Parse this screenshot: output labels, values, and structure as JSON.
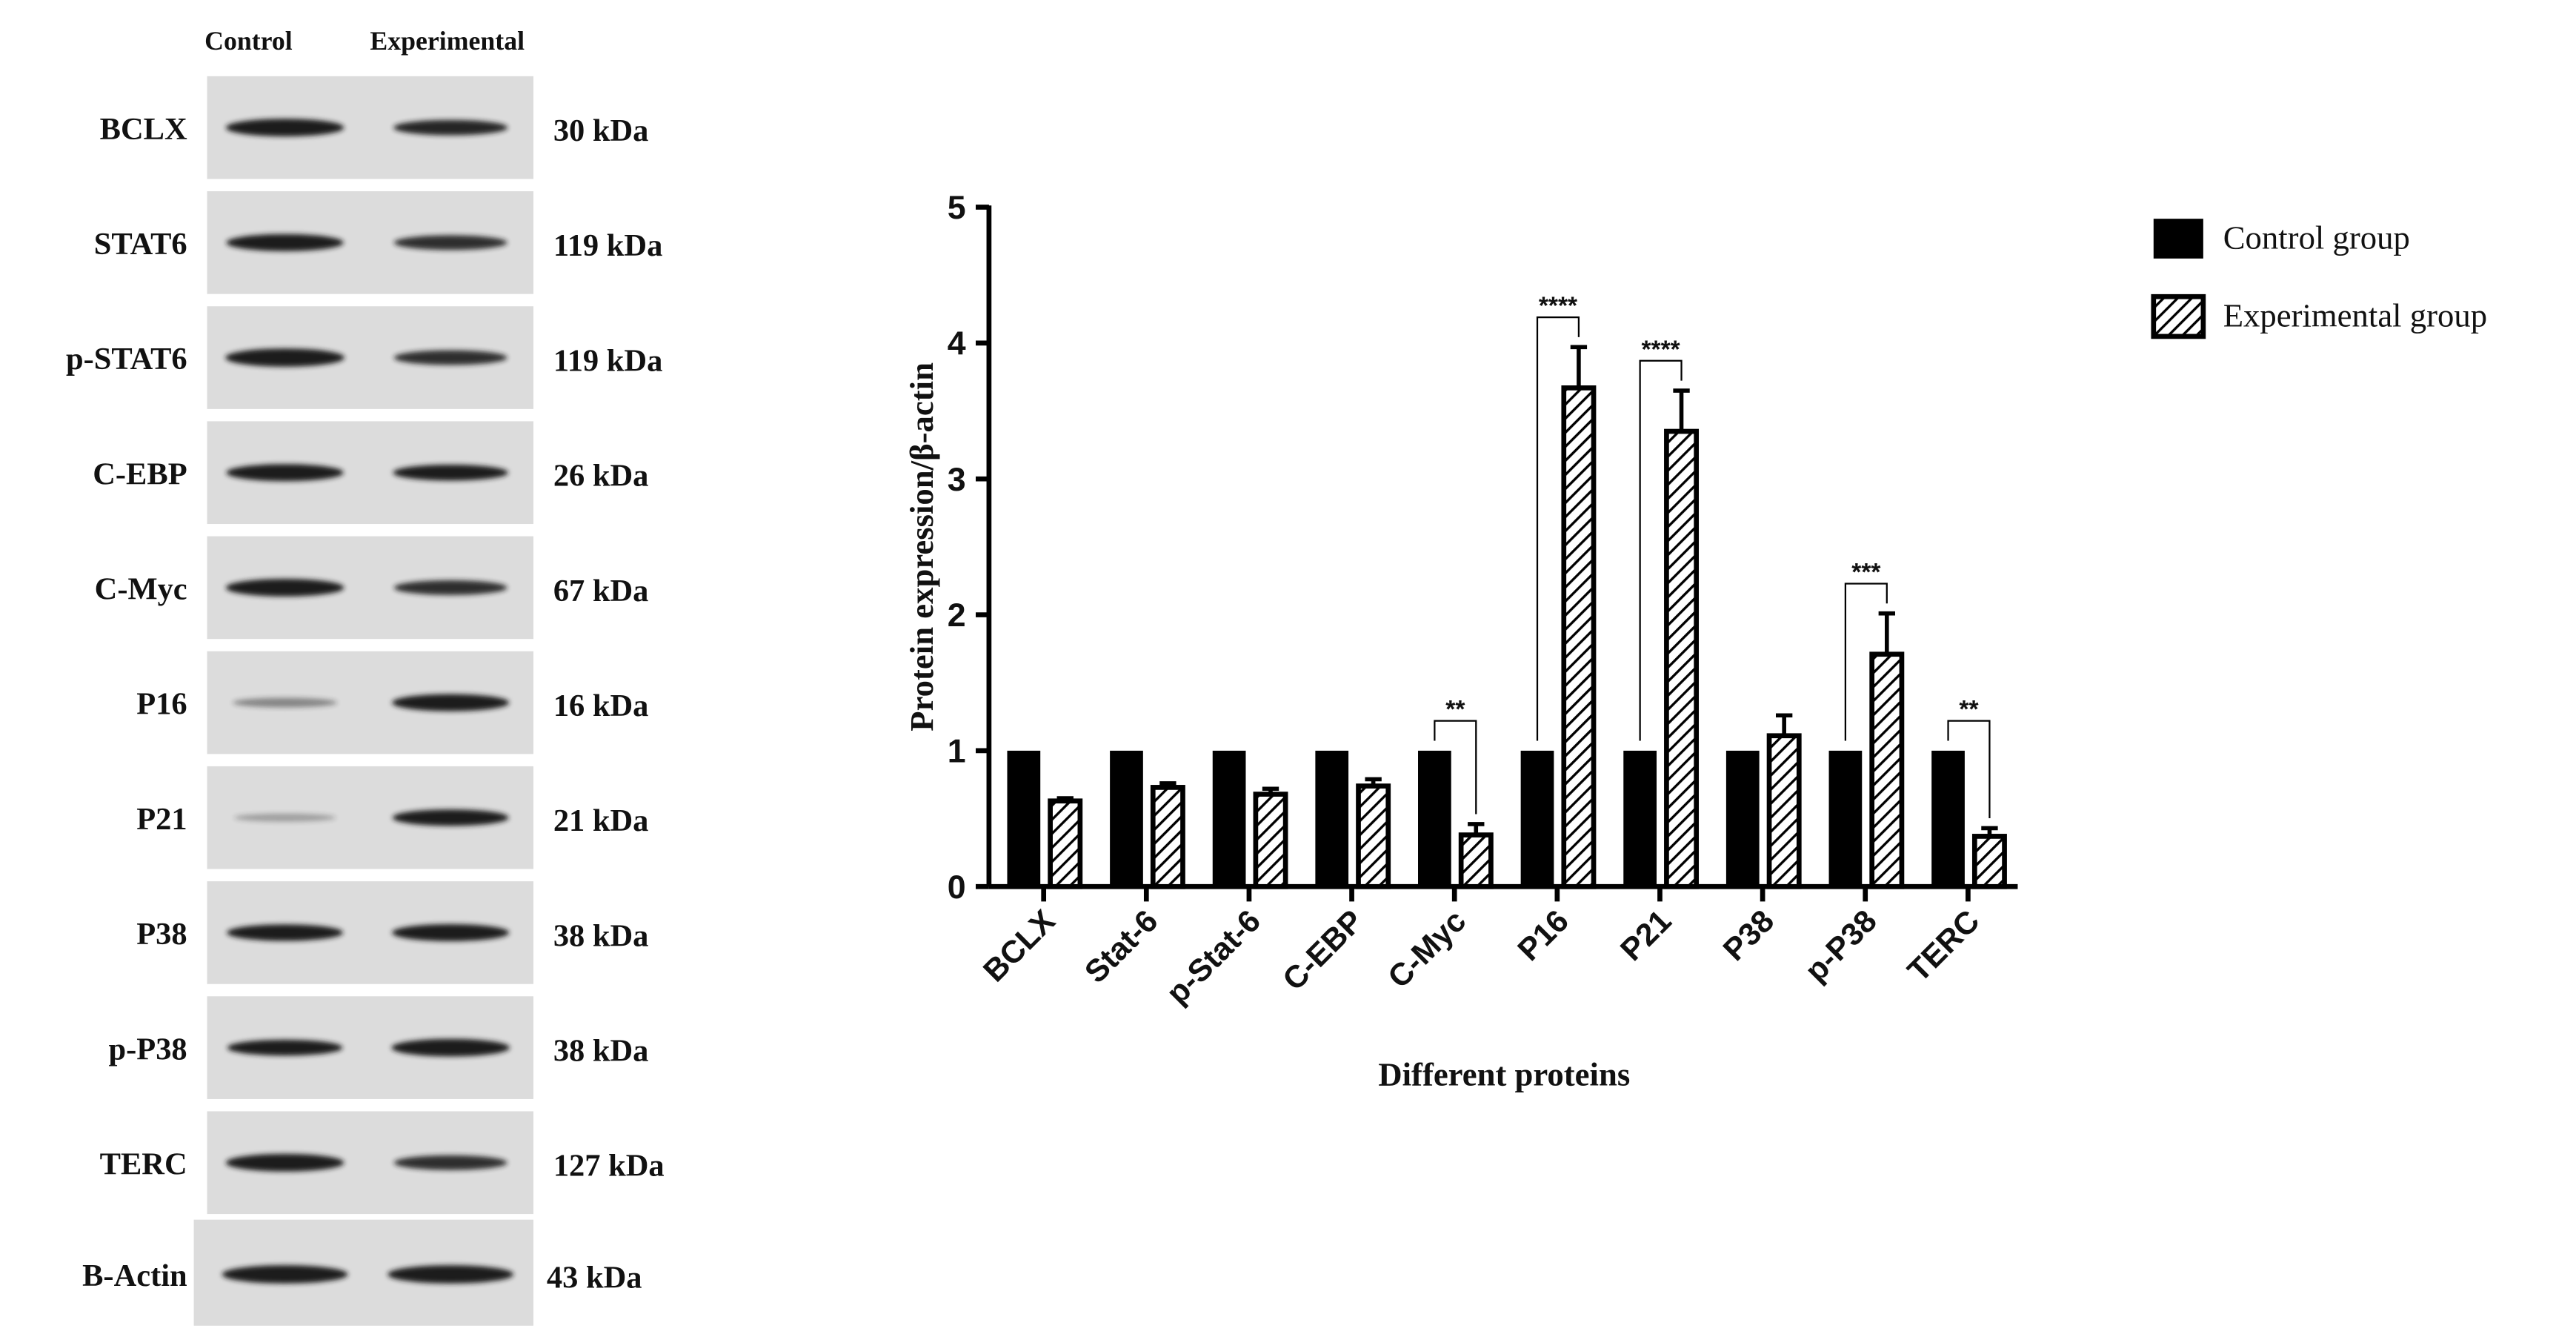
{
  "blot": {
    "column_headers": [
      "Control",
      "Experimental"
    ],
    "rows": [
      {
        "label": "BCLX",
        "kda": "30 kDa",
        "control": 0.95,
        "experimental": 0.75
      },
      {
        "label": "STAT6",
        "kda": "119 kDa",
        "control": 0.9,
        "experimental": 0.7
      },
      {
        "label": "p-STAT6",
        "kda": "119 kDa",
        "control": 1.0,
        "experimental": 0.7
      },
      {
        "label": "C-EBP",
        "kda": "26 kDa",
        "control": 0.9,
        "experimental": 0.8
      },
      {
        "label": "C-Myc",
        "kda": "67 kDa",
        "control": 0.95,
        "experimental": 0.7
      },
      {
        "label": "P16",
        "kda": "16 kDa",
        "control": 0.25,
        "experimental": 0.9
      },
      {
        "label": "P21",
        "kda": "21 kDa",
        "control": 0.12,
        "experimental": 0.85
      },
      {
        "label": "P38",
        "kda": "38 kDa",
        "control": 0.85,
        "experimental": 0.9
      },
      {
        "label": "p-P38",
        "kda": "38 kDa",
        "control": 0.8,
        "experimental": 0.95
      },
      {
        "label": "TERC",
        "kda": "127 kDa",
        "control": 0.95,
        "experimental": 0.7
      },
      {
        "label": "B-Actin",
        "kda": "43 kDa",
        "control": 1.0,
        "experimental": 1.0
      }
    ]
  },
  "chart_data": {
    "type": "bar",
    "title": "",
    "xlabel": "Different proteins",
    "ylabel": "Protein expression/β-actin",
    "ylim": [
      0,
      5
    ],
    "yticks": [
      "0",
      "1",
      "2",
      "3",
      "4",
      "5"
    ],
    "categories": [
      "BCLX",
      "Stat-6",
      "p-Stat-6",
      "C-EBP",
      "C-Myc",
      "P16",
      "P21",
      "P38",
      "p-P38",
      "TERC"
    ],
    "series": [
      {
        "name": "Control group",
        "values": [
          1,
          1,
          1,
          1,
          1,
          1,
          1,
          1,
          1,
          1
        ],
        "errors": [
          0,
          0,
          0,
          0,
          0,
          0,
          0,
          0,
          0,
          0
        ]
      },
      {
        "name": "Experimental group",
        "values": [
          0.63,
          0.73,
          0.68,
          0.74,
          0.38,
          3.67,
          3.35,
          1.11,
          1.71,
          0.37
        ],
        "errors": [
          0.02,
          0.03,
          0.04,
          0.05,
          0.08,
          0.3,
          0.3,
          0.15,
          0.3,
          0.06
        ]
      }
    ],
    "significance": [
      {
        "category": "C-Myc",
        "label": "**"
      },
      {
        "category": "P16",
        "label": "****"
      },
      {
        "category": "P21",
        "label": "****"
      },
      {
        "category": "p-P38",
        "label": "***"
      },
      {
        "category": "TERC",
        "label": "**"
      }
    ],
    "legend_position": "top-right"
  },
  "colors": {
    "control_bar": "#000000",
    "experimental_hatch": "#000000",
    "blot_background": "#dcdcdc",
    "band": "#1a1a1a"
  }
}
